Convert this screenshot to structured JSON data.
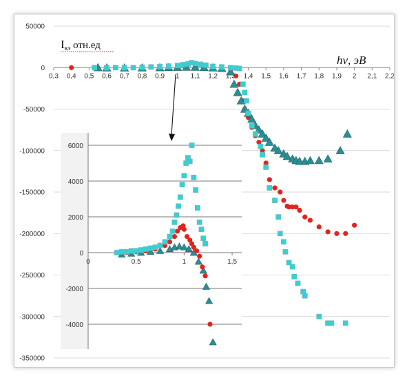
{
  "chart_data": [
    {
      "type": "scatter",
      "title": "",
      "ylabel": "Iкз отн.ед",
      "ylabel_main": "I",
      "ylabel_sub": "кз",
      "ylabel_rest": " отн.ед",
      "xlabel": "hν, эВ",
      "xlabel_main": "hν",
      "xlabel_rest": ", эВ",
      "xlim": [
        0.3,
        2.2
      ],
      "ylim": [
        -350000,
        50000
      ],
      "x_ticks": [
        "0,3",
        "0,4",
        "0,5",
        "0,6",
        "0,7",
        "0,8",
        "0,9",
        "1",
        "1,1",
        "1,2",
        "1,3",
        "1,4",
        "1,5",
        "1,6",
        "1,7",
        "1,8",
        "1,9",
        "2",
        "2,1",
        "2,2"
      ],
      "y_ticks": [
        "50000",
        "0",
        "-50000",
        "-100000",
        "-150000",
        "-200000",
        "-250000",
        "-300000",
        "-350000"
      ],
      "grid": "horizontal",
      "series": [
        {
          "marker": "square",
          "color": "#33d1d6",
          "points": [
            [
              0.53,
              0
            ],
            [
              0.6,
              0
            ],
            [
              0.65,
              0
            ],
            [
              0.7,
              0
            ],
            [
              0.75,
              0
            ],
            [
              0.8,
              500
            ],
            [
              0.85,
              800
            ],
            [
              0.9,
              1200
            ],
            [
              0.95,
              1800
            ],
            [
              1.0,
              2600
            ],
            [
              1.03,
              3500
            ],
            [
              1.06,
              4500
            ],
            [
              1.08,
              6000
            ],
            [
              1.1,
              5000
            ],
            [
              1.13,
              4000
            ],
            [
              1.16,
              3000
            ],
            [
              1.2,
              1500
            ],
            [
              1.25,
              800
            ],
            [
              1.3,
              0
            ],
            [
              1.33,
              -500
            ],
            [
              1.35,
              -1000
            ],
            [
              1.37,
              -20000
            ],
            [
              1.38,
              -30000
            ],
            [
              1.39,
              -40000
            ],
            [
              1.4,
              -55000
            ],
            [
              1.42,
              -70000
            ],
            [
              1.44,
              -80000
            ],
            [
              1.47,
              -95000
            ],
            [
              1.48,
              -105000
            ],
            [
              1.5,
              -120000
            ],
            [
              1.52,
              -145000
            ],
            [
              1.55,
              -160000
            ],
            [
              1.57,
              -180000
            ],
            [
              1.58,
              -200000
            ],
            [
              1.6,
              -210000
            ],
            [
              1.61,
              -222000
            ],
            [
              1.63,
              -235000
            ],
            [
              1.65,
              -240000
            ],
            [
              1.66,
              -252000
            ],
            [
              1.68,
              -260000
            ],
            [
              1.71,
              -270000
            ],
            [
              1.72,
              -275000
            ],
            [
              1.8,
              -300000
            ],
            [
              1.85,
              -308000
            ],
            [
              1.87,
              -308000
            ],
            [
              1.95,
              -308000
            ]
          ]
        },
        {
          "marker": "circle",
          "color": "#e2241e",
          "points": [
            [
              0.4,
              0
            ],
            [
              0.6,
              -300
            ],
            [
              0.7,
              -200
            ],
            [
              0.8,
              200
            ],
            [
              0.9,
              500
            ],
            [
              0.95,
              800
            ],
            [
              1.0,
              1200
            ],
            [
              1.05,
              1600
            ],
            [
              1.1,
              1500
            ],
            [
              1.15,
              1000
            ],
            [
              1.2,
              500
            ],
            [
              1.25,
              -500
            ],
            [
              1.3,
              -2000
            ],
            [
              1.33,
              -10000
            ],
            [
              1.35,
              -20000
            ],
            [
              1.37,
              -40000
            ],
            [
              1.38,
              -50000
            ],
            [
              1.4,
              -60000
            ],
            [
              1.42,
              -72000
            ],
            [
              1.44,
              -82000
            ],
            [
              1.46,
              -90000
            ],
            [
              1.48,
              -100000
            ],
            [
              1.5,
              -115000
            ],
            [
              1.52,
              -135000
            ],
            [
              1.55,
              -145000
            ],
            [
              1.58,
              -150000
            ],
            [
              1.6,
              -160000
            ],
            [
              1.62,
              -167000
            ],
            [
              1.63,
              -168000
            ],
            [
              1.65,
              -168000
            ],
            [
              1.67,
              -168000
            ],
            [
              1.69,
              -172000
            ],
            [
              1.72,
              -180000
            ],
            [
              1.75,
              -184000
            ],
            [
              1.8,
              -192000
            ],
            [
              1.85,
              -198000
            ],
            [
              1.9,
              -200000
            ],
            [
              1.95,
              -200000
            ],
            [
              2.0,
              -190000
            ]
          ]
        },
        {
          "marker": "triangle",
          "color": "#2a8e93",
          "points": [
            [
              0.55,
              0
            ],
            [
              0.6,
              -200
            ],
            [
              0.7,
              -300
            ],
            [
              0.8,
              -200
            ],
            [
              0.9,
              0
            ],
            [
              0.95,
              200
            ],
            [
              1.0,
              400
            ],
            [
              1.05,
              600
            ],
            [
              1.1,
              500
            ],
            [
              1.15,
              200
            ],
            [
              1.2,
              -200
            ],
            [
              1.25,
              -1000
            ],
            [
              1.3,
              -5000
            ],
            [
              1.32,
              -20000
            ],
            [
              1.34,
              -30000
            ],
            [
              1.36,
              -40000
            ],
            [
              1.38,
              -50000
            ],
            [
              1.4,
              -55000
            ],
            [
              1.42,
              -62000
            ],
            [
              1.44,
              -70000
            ],
            [
              1.46,
              -75000
            ],
            [
              1.48,
              -80000
            ],
            [
              1.5,
              -85000
            ],
            [
              1.52,
              -90000
            ],
            [
              1.55,
              -97000
            ],
            [
              1.57,
              -100000
            ],
            [
              1.6,
              -104000
            ],
            [
              1.62,
              -107000
            ],
            [
              1.65,
              -110000
            ],
            [
              1.67,
              -112000
            ],
            [
              1.69,
              -113000
            ],
            [
              1.72,
              -113000
            ],
            [
              1.75,
              -112000
            ],
            [
              1.8,
              -112000
            ],
            [
              1.85,
              -110000
            ],
            [
              1.92,
              -100000
            ],
            [
              1.96,
              -80000
            ]
          ]
        }
      ]
    },
    {
      "type": "scatter",
      "title": "",
      "xlim": [
        0,
        1.6
      ],
      "ylim": [
        -5000,
        6000
      ],
      "x_ticks": [
        "0",
        "0,5",
        "1",
        "1,5"
      ],
      "y_ticks": [
        "6000",
        "4000",
        "2000",
        "0",
        "-2000",
        "-4000"
      ],
      "grid": "horizontal",
      "series": [
        {
          "marker": "square",
          "color": "#33d1d6",
          "points": [
            [
              0.3,
              0
            ],
            [
              0.35,
              50
            ],
            [
              0.4,
              50
            ],
            [
              0.45,
              100
            ],
            [
              0.5,
              100
            ],
            [
              0.55,
              150
            ],
            [
              0.6,
              200
            ],
            [
              0.65,
              250
            ],
            [
              0.7,
              300
            ],
            [
              0.75,
              400
            ],
            [
              0.8,
              600
            ],
            [
              0.85,
              900
            ],
            [
              0.88,
              1200
            ],
            [
              0.9,
              1700
            ],
            [
              0.92,
              2100
            ],
            [
              0.94,
              2600
            ],
            [
              0.96,
              3100
            ],
            [
              0.98,
              3800
            ],
            [
              1.0,
              4300
            ],
            [
              1.02,
              5000
            ],
            [
              1.04,
              5300
            ],
            [
              1.06,
              5100
            ],
            [
              1.08,
              6000
            ],
            [
              1.1,
              4200
            ],
            [
              1.12,
              3500
            ],
            [
              1.14,
              2500
            ],
            [
              1.16,
              1700
            ],
            [
              1.18,
              1300
            ],
            [
              1.2,
              800
            ],
            [
              1.22,
              500
            ]
          ]
        },
        {
          "marker": "circle",
          "color": "#e2241e",
          "points": [
            [
              0.3,
              0
            ],
            [
              0.4,
              0
            ],
            [
              0.5,
              50
            ],
            [
              0.6,
              100
            ],
            [
              0.7,
              200
            ],
            [
              0.8,
              400
            ],
            [
              0.85,
              600
            ],
            [
              0.9,
              900
            ],
            [
              0.93,
              1200
            ],
            [
              0.96,
              1400
            ],
            [
              0.99,
              1500
            ],
            [
              1.0,
              1300
            ],
            [
              1.03,
              900
            ],
            [
              1.06,
              700
            ],
            [
              1.08,
              500
            ],
            [
              1.1,
              300
            ],
            [
              1.13,
              100
            ],
            [
              1.16,
              -200
            ],
            [
              1.19,
              -800
            ],
            [
              1.22,
              -1300
            ],
            [
              1.27,
              -4000
            ]
          ]
        },
        {
          "marker": "triangle",
          "color": "#2a8e93",
          "points": [
            [
              0.35,
              -100
            ],
            [
              0.45,
              -50
            ],
            [
              0.55,
              0
            ],
            [
              0.65,
              50
            ],
            [
              0.75,
              100
            ],
            [
              0.85,
              200
            ],
            [
              0.9,
              300
            ],
            [
              0.95,
              350
            ],
            [
              1.0,
              300
            ],
            [
              1.05,
              200
            ],
            [
              1.1,
              0
            ],
            [
              1.15,
              -500
            ],
            [
              1.2,
              -1000
            ],
            [
              1.23,
              -1900
            ],
            [
              1.26,
              -2700
            ],
            [
              1.3,
              -5000
            ]
          ]
        }
      ]
    }
  ]
}
